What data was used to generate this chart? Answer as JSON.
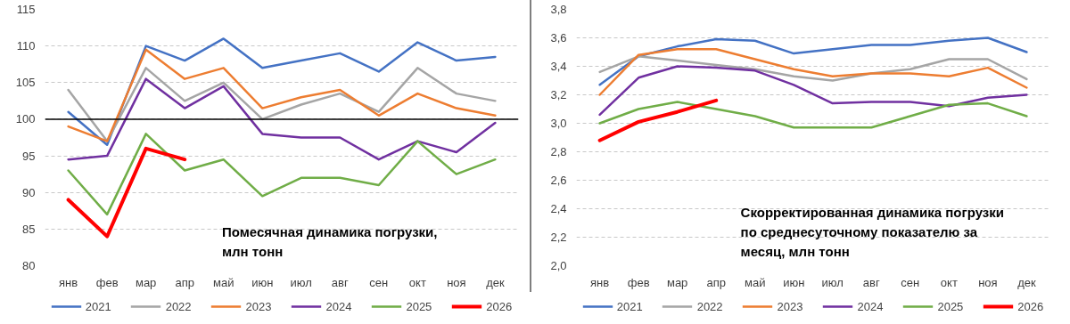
{
  "chart_data": [
    {
      "type": "line",
      "title": "Помесячная динамика погрузки, млн тонн",
      "categories": [
        "янв",
        "фев",
        "мар",
        "апр",
        "май",
        "июн",
        "июл",
        "авг",
        "сен",
        "окт",
        "ноя",
        "дек"
      ],
      "ylim": [
        80,
        115
      ],
      "yticks": [
        80,
        85,
        90,
        95,
        100,
        105,
        110,
        115
      ],
      "grid": "y",
      "legend": "bottom",
      "ref_lines": [
        {
          "axis": "y",
          "value": 100,
          "color": "#000000"
        }
      ],
      "series": [
        {
          "name": "2021",
          "color": "#4472c4",
          "values": [
            101.0,
            96.5,
            110.0,
            108.0,
            111.0,
            107.0,
            108.0,
            109.0,
            106.5,
            110.5,
            108.0,
            108.5
          ]
        },
        {
          "name": "2022",
          "color": "#a5a5a5",
          "values": [
            104.0,
            97.0,
            107.0,
            102.5,
            105.0,
            100.0,
            102.0,
            103.5,
            101.0,
            107.0,
            103.5,
            102.5
          ]
        },
        {
          "name": "2023",
          "color": "#ed7d31",
          "values": [
            99.0,
            97.0,
            109.5,
            105.5,
            107.0,
            101.5,
            103.0,
            104.0,
            100.5,
            103.5,
            101.5,
            100.5
          ]
        },
        {
          "name": "2024",
          "color": "#7030a0",
          "values": [
            94.5,
            95.0,
            105.5,
            101.5,
            104.5,
            98.0,
            97.5,
            97.5,
            94.5,
            97.0,
            95.5,
            99.5
          ]
        },
        {
          "name": "2025",
          "color": "#70ad47",
          "values": [
            93.0,
            87.0,
            98.0,
            93.0,
            94.5,
            89.5,
            92.0,
            92.0,
            91.0,
            97.0,
            92.5,
            94.5
          ]
        },
        {
          "name": "2026",
          "color": "#ff0000",
          "values": [
            89.0,
            84.0,
            96.0,
            94.5,
            null,
            null,
            null,
            null,
            null,
            null,
            null,
            null
          ]
        }
      ]
    },
    {
      "type": "line",
      "title": "Скорректированная динамика погрузки по среднесуточному показателю за месяц, млн тонн",
      "categories": [
        "янв",
        "фев",
        "мар",
        "апр",
        "май",
        "июн",
        "июл",
        "авг",
        "сен",
        "окт",
        "ноя",
        "дек"
      ],
      "ylim": [
        2.0,
        3.8
      ],
      "yticks": [
        {
          "value": 2.0,
          "label": "2,0"
        },
        {
          "value": 2.2,
          "label": "2,2"
        },
        {
          "value": 2.4,
          "label": "2,4"
        },
        {
          "value": 2.6,
          "label": "2,6"
        },
        {
          "value": 2.8,
          "label": "2,8"
        },
        {
          "value": 3.0,
          "label": "3,0"
        },
        {
          "value": 3.2,
          "label": "3,2"
        },
        {
          "value": 3.4,
          "label": "3,4"
        },
        {
          "value": 3.6,
          "label": "3,6"
        },
        {
          "value": 3.8,
          "label": "3,8"
        }
      ],
      "grid": "y",
      "legend": "bottom",
      "series": [
        {
          "name": "2021",
          "color": "#4472c4",
          "values": [
            3.27,
            3.47,
            3.54,
            3.59,
            3.58,
            3.49,
            3.52,
            3.55,
            3.55,
            3.58,
            3.6,
            3.5
          ]
        },
        {
          "name": "2022",
          "color": "#a5a5a5",
          "values": [
            3.36,
            3.47,
            3.44,
            3.41,
            3.38,
            3.33,
            3.3,
            3.35,
            3.38,
            3.45,
            3.45,
            3.31
          ]
        },
        {
          "name": "2023",
          "color": "#ed7d31",
          "values": [
            3.2,
            3.48,
            3.52,
            3.52,
            3.45,
            3.38,
            3.33,
            3.35,
            3.35,
            3.33,
            3.39,
            3.25
          ]
        },
        {
          "name": "2024",
          "color": "#7030a0",
          "values": [
            3.06,
            3.32,
            3.4,
            3.39,
            3.37,
            3.27,
            3.14,
            3.15,
            3.15,
            3.12,
            3.18,
            3.2
          ]
        },
        {
          "name": "2025",
          "color": "#70ad47",
          "values": [
            3.0,
            3.1,
            3.15,
            3.1,
            3.05,
            2.97,
            2.97,
            2.97,
            3.05,
            3.13,
            3.14,
            3.05
          ]
        },
        {
          "name": "2026",
          "color": "#ff0000",
          "values": [
            2.88,
            3.01,
            3.08,
            3.16,
            null,
            null,
            null,
            null,
            null,
            null,
            null,
            null
          ]
        }
      ]
    }
  ]
}
